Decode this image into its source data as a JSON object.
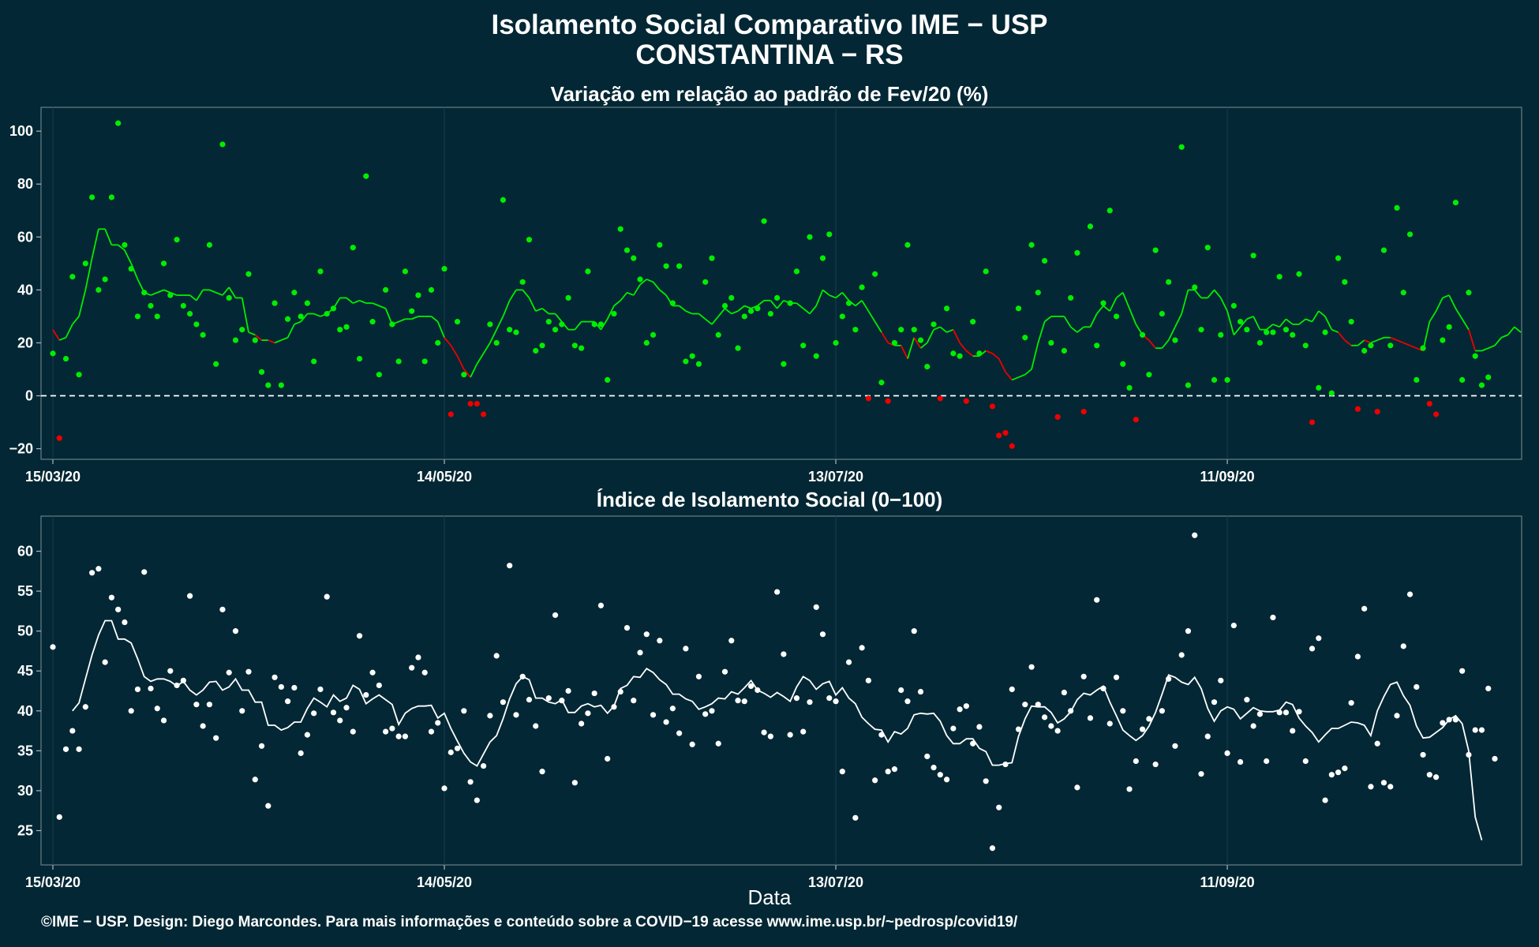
{
  "title_line1": "Isolamento Social Comparativo IME − USP",
  "title_line2": "CONSTANTINA − RS",
  "xlabel": "Data",
  "caption": "©IME − USP. Design: Diego Marcondes. Para mais informações e conteúdo sobre a COVID−19 acesse www.ime.usp.br/~pedrosp/covid19/",
  "colors": {
    "background": "#032734",
    "positive": "#00ee00",
    "negative": "#ee0000",
    "index": "#ffffff"
  },
  "chart_data": [
    {
      "type": "scatter",
      "title": "Variação em relação ao padrão de Fev/20 (%)",
      "xlabel": "Data",
      "ylabel": "",
      "x_start": "2020-03-15",
      "x_ticks": [
        "15/03/20",
        "14/05/20",
        "13/07/20",
        "11/09/20"
      ],
      "ylim": [
        -24,
        109
      ],
      "y_ticks": [
        -20,
        0,
        20,
        40,
        60,
        80,
        100
      ],
      "reference_line": 0,
      "series": [
        {
          "values": [
            16,
            -16,
            14,
            45,
            8,
            50,
            75,
            40,
            44,
            75,
            103,
            57,
            48,
            30,
            39,
            34,
            30,
            50,
            38,
            59,
            34,
            31,
            27,
            23,
            57,
            12,
            95,
            37,
            21,
            25,
            46,
            21,
            9,
            4,
            35,
            4,
            29,
            39,
            30,
            35,
            13,
            47,
            31,
            33,
            25,
            26,
            56,
            14,
            83,
            28,
            8,
            40,
            27,
            13,
            47,
            32,
            38,
            13,
            40,
            20,
            48,
            -7,
            28,
            8,
            -3,
            -3,
            -7,
            27,
            20,
            74,
            25,
            24,
            43,
            59,
            17,
            19,
            28,
            25,
            27,
            37,
            19,
            18,
            47,
            27,
            27,
            6,
            31,
            63,
            55,
            52,
            44,
            20,
            23,
            57,
            49,
            35,
            49,
            13,
            15,
            12,
            43,
            52,
            23,
            34,
            37,
            18,
            30,
            32,
            33,
            66,
            31,
            37,
            12,
            35,
            47,
            19,
            60,
            15,
            52,
            61,
            20,
            30,
            35,
            25,
            41,
            -1,
            46,
            5,
            -2,
            20,
            25,
            57,
            25,
            21,
            11,
            27,
            -1,
            33,
            16,
            15,
            -2,
            28,
            16,
            47,
            -4,
            -15,
            -14,
            -19,
            33,
            22,
            57,
            39,
            51,
            20,
            -8,
            17,
            37,
            54,
            -6,
            64,
            19,
            35,
            70,
            30,
            12,
            3,
            -9,
            23,
            8,
            55,
            31,
            43,
            21,
            94,
            4,
            41,
            25,
            56,
            6,
            23,
            6,
            34,
            28,
            25,
            53,
            20,
            24,
            24,
            45,
            25,
            23,
            46,
            19,
            -10,
            3,
            24,
            1,
            52,
            43,
            28,
            -5,
            17,
            19,
            -6,
            55,
            19,
            71,
            39,
            61,
            6,
            18,
            -3,
            -7,
            21,
            26,
            73,
            6,
            39,
            15,
            4,
            7
          ]
        },
        {
          "values": [
            25,
            21,
            22,
            27,
            30,
            40,
            52,
            63,
            63,
            57,
            57,
            55,
            50,
            44,
            39,
            38,
            39,
            40,
            39,
            38,
            38,
            38,
            36,
            40,
            40,
            39,
            38,
            41,
            37,
            37,
            24,
            23,
            21,
            21,
            20,
            21,
            22,
            27,
            28,
            31,
            31,
            30,
            31,
            33,
            37,
            37,
            35,
            36,
            35,
            35,
            34,
            33,
            27,
            28,
            29,
            29,
            30,
            30,
            30,
            28,
            22,
            19,
            15,
            10,
            7,
            12,
            16,
            20,
            25,
            30,
            36,
            40,
            40,
            37,
            32,
            33,
            31,
            31,
            28,
            25,
            25,
            28,
            28,
            28,
            25,
            29,
            34,
            36,
            39,
            38,
            42,
            44,
            43,
            40,
            38,
            34,
            34,
            32,
            31,
            31,
            29,
            27,
            30,
            33,
            31,
            32,
            34,
            33,
            34,
            36,
            36,
            33,
            36,
            35,
            35,
            33,
            31,
            34,
            40,
            38,
            37,
            39,
            36,
            34,
            36,
            32,
            28,
            24,
            20,
            19,
            19,
            14,
            22,
            18,
            20,
            25,
            26,
            24,
            25,
            20,
            17,
            15,
            15,
            17,
            16,
            14,
            9,
            6,
            7,
            8,
            10,
            20,
            28,
            30,
            30,
            30,
            26,
            24,
            26,
            26,
            31,
            34,
            32,
            37,
            39,
            33,
            27,
            23,
            21,
            18,
            18,
            21,
            26,
            31,
            40,
            40,
            37,
            37,
            40,
            37,
            32,
            23,
            26,
            29,
            30,
            25,
            25,
            27,
            26,
            29,
            27,
            27,
            29,
            28,
            32,
            30,
            25,
            24,
            21,
            19,
            19,
            21,
            20,
            21,
            22,
            22,
            21,
            20,
            19,
            18,
            17,
            28,
            32,
            37,
            38,
            33,
            29,
            25,
            17,
            17,
            18,
            19,
            22,
            23,
            26,
            24
          ]
        }
      ]
    },
    {
      "type": "scatter",
      "title": "Índice de Isolamento Social (0−100)",
      "xlabel": "Data",
      "ylabel": "",
      "x_start": "2020-03-15",
      "x_ticks": [
        "15/03/20",
        "14/05/20",
        "13/07/20",
        "11/09/20"
      ],
      "ylim": [
        20.7,
        64.4
      ],
      "y_ticks": [
        25,
        30,
        35,
        40,
        45,
        50,
        55,
        60
      ],
      "series": [
        {
          "values": [
            48.0,
            26.7,
            35.2,
            37.5,
            35.2,
            40.5,
            57.3,
            57.8,
            46.1,
            54.2,
            52.7,
            51.1,
            40.0,
            42.7,
            57.4,
            42.8,
            40.3,
            38.8,
            45.0,
            43.2,
            43.8,
            54.4,
            40.8,
            38.1,
            40.8,
            36.6,
            52.7,
            44.8,
            50.0,
            40.0,
            44.9,
            31.4,
            35.6,
            28.1,
            44.2,
            43.0,
            41.2,
            42.9,
            34.7,
            37.0,
            39.7,
            42.7,
            54.3,
            39.8,
            38.8,
            40.4,
            37.4,
            49.4,
            42.0,
            44.8,
            43.2,
            37.4,
            37.8,
            36.8,
            36.8,
            45.4,
            46.7,
            44.8,
            37.4,
            38.5,
            30.3,
            34.8,
            35.3,
            40.0,
            31.1,
            28.8,
            33.1,
            39.4,
            46.9,
            41.1,
            58.2,
            39.5,
            44.3,
            41.4,
            38.1,
            32.4,
            41.6,
            52.0,
            41.3,
            42.5,
            31.0,
            38.4,
            39.7,
            42.2,
            53.2,
            34.0,
            40.5,
            42.4,
            50.4,
            41.3,
            47.3,
            49.6,
            39.5,
            48.8,
            38.6,
            40.3,
            37.2,
            47.8,
            35.8,
            44.3,
            39.6,
            40.0,
            35.9,
            44.9,
            48.8,
            41.3,
            41.2,
            43.1,
            42.6,
            37.3,
            36.8,
            54.9,
            47.1,
            37.0,
            41.6,
            37.4,
            41.1,
            53.0,
            49.6,
            41.6,
            41.2,
            32.4,
            46.1,
            26.6,
            47.9,
            43.8,
            31.3,
            37.0,
            32.4,
            32.7,
            42.6,
            41.2,
            50.0,
            42.4,
            34.3,
            32.9,
            32.0,
            31.4,
            37.8,
            40.2,
            40.6,
            35.9,
            38.0,
            31.2,
            22.8,
            27.9,
            33.3,
            42.7,
            37.7,
            40.8,
            45.5,
            40.8,
            39.2,
            38.1,
            37.5,
            42.3,
            40.0,
            30.4,
            44.3,
            39.1,
            53.9,
            42.8,
            38.4,
            44.2,
            40.0,
            30.2,
            33.7,
            37.7,
            39.0,
            33.3,
            40.0,
            44.0,
            35.6,
            47.0,
            50.0,
            62.0,
            32.1,
            36.8,
            41.1,
            43.8,
            34.7,
            50.7,
            33.6,
            41.4,
            38.1,
            39.6,
            33.7,
            51.7,
            39.8,
            39.8,
            37.5,
            39.9,
            33.7,
            47.8,
            49.1,
            28.8,
            32.0,
            32.3,
            32.8,
            41.0,
            46.8,
            52.8,
            30.5,
            35.9,
            31.0,
            30.5,
            39.4,
            48.1,
            54.6,
            43.0,
            34.5,
            32.0,
            31.7,
            38.5,
            38.9,
            38.9,
            45.0,
            34.5,
            37.6,
            37.6,
            42.8,
            34.0
          ]
        },
        {
          "values": [
            40.0,
            41.0,
            44.0,
            47.0,
            49.5,
            51.3,
            51.3,
            49.0,
            49.0,
            48.5,
            46.5,
            44.3,
            43.7,
            44.0,
            44.0,
            43.7,
            43.1,
            43.7,
            42.6,
            42.0,
            42.6,
            43.6,
            43.7,
            42.6,
            43.0,
            44.0,
            42.6,
            42.6,
            41.1,
            41.1,
            38.2,
            38.2,
            37.6,
            37.9,
            38.6,
            38.6,
            40.3,
            41.6,
            41.1,
            40.5,
            42.0,
            41.2,
            41.6,
            43.2,
            42.7,
            40.9,
            41.5,
            42.0,
            41.4,
            40.8,
            38.3,
            39.7,
            40.3,
            40.6,
            40.6,
            40.7,
            39.1,
            39.7,
            37.8,
            36.2,
            34.7,
            33.6,
            33.1,
            34.6,
            36.1,
            36.9,
            39.0,
            41.5,
            43.4,
            44.3,
            43.9,
            41.6,
            41.6,
            41.1,
            40.9,
            41.4,
            39.8,
            39.8,
            40.6,
            40.9,
            40.5,
            40.7,
            39.7,
            40.6,
            42.8,
            43.2,
            44.3,
            44.2,
            45.3,
            44.8,
            43.9,
            43.3,
            42.1,
            42.1,
            41.5,
            41.2,
            40.2,
            40.5,
            40.9,
            41.6,
            41.5,
            42.4,
            42.1,
            42.9,
            43.8,
            42.6,
            42.2,
            41.7,
            42.3,
            41.8,
            41.2,
            43.0,
            44.3,
            43.8,
            42.7,
            43.4,
            43.7,
            42.0,
            42.9,
            41.6,
            40.9,
            39.2,
            38.4,
            37.7,
            37.6,
            36.1,
            37.4,
            37.1,
            37.8,
            39.5,
            39.7,
            39.6,
            39.7,
            38.7,
            36.9,
            35.9,
            35.9,
            36.5,
            36.5,
            35.3,
            34.9,
            33.2,
            33.2,
            33.4,
            33.5,
            36.8,
            39.0,
            40.6,
            40.5,
            40.5,
            39.8,
            38.5,
            39.0,
            39.9,
            41.4,
            42.2,
            42.0,
            42.6,
            43.1,
            41.1,
            39.4,
            37.6,
            36.9,
            36.3,
            36.9,
            38.1,
            39.8,
            42.1,
            44.5,
            44.2,
            43.6,
            43.3,
            44.2,
            42.8,
            40.3,
            38.7,
            40.0,
            40.5,
            40.2,
            39.0,
            39.7,
            40.4,
            40.0,
            39.9,
            39.9,
            40.1,
            41.1,
            40.8,
            39.1,
            38.1,
            37.3,
            36.1,
            37.0,
            37.8,
            37.8,
            38.2,
            38.6,
            38.5,
            38.2,
            36.9,
            40.0,
            41.8,
            43.3,
            43.6,
            41.9,
            40.7,
            38.1,
            36.6,
            36.7,
            37.3,
            37.9,
            38.9,
            39.4,
            38.4,
            35.0,
            26.7,
            23.8
          ]
        }
      ]
    }
  ]
}
